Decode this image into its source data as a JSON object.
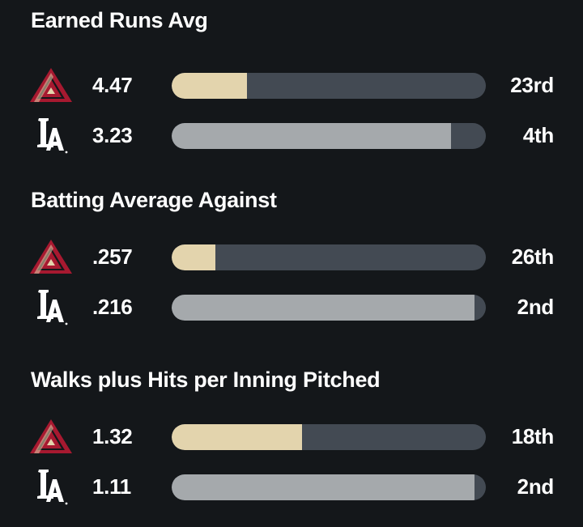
{
  "teams": {
    "away": {
      "logo": "diamondbacks-logo-icon",
      "bar_color": "#e3d4ad"
    },
    "home": {
      "logo": "dodgers-logo-icon",
      "bar_color": "#a5a9ac"
    }
  },
  "chart_data": [
    {
      "type": "bar",
      "title": "Earned Runs Avg",
      "series": [
        {
          "team": "away",
          "value_label": "4.47",
          "rank": "23rd",
          "fill_fraction": 0.24
        },
        {
          "team": "home",
          "value_label": "3.23",
          "rank": "4th",
          "fill_fraction": 0.89
        }
      ]
    },
    {
      "type": "bar",
      "title": "Batting Average Against",
      "series": [
        {
          "team": "away",
          "value_label": ".257",
          "rank": "26th",
          "fill_fraction": 0.14
        },
        {
          "team": "home",
          "value_label": ".216",
          "rank": "2nd",
          "fill_fraction": 0.965
        }
      ]
    },
    {
      "type": "bar",
      "title": "Walks plus Hits per Inning Pitched",
      "series": [
        {
          "team": "away",
          "value_label": "1.32",
          "rank": "18th",
          "fill_fraction": 0.415
        },
        {
          "team": "home",
          "value_label": "1.11",
          "rank": "2nd",
          "fill_fraction": 0.965
        }
      ]
    }
  ]
}
